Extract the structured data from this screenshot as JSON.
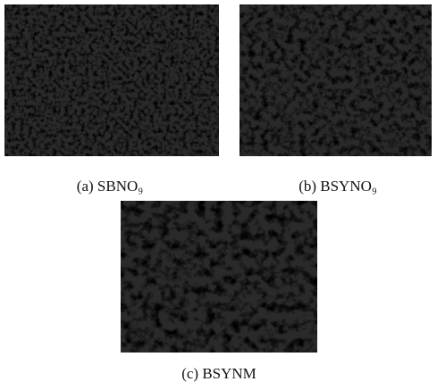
{
  "figure": {
    "panels": [
      {
        "caption": "(a) SBNO₉"
      },
      {
        "caption": "(b) BSYNO₉"
      },
      {
        "caption": "(c) BSYNM"
      }
    ]
  }
}
